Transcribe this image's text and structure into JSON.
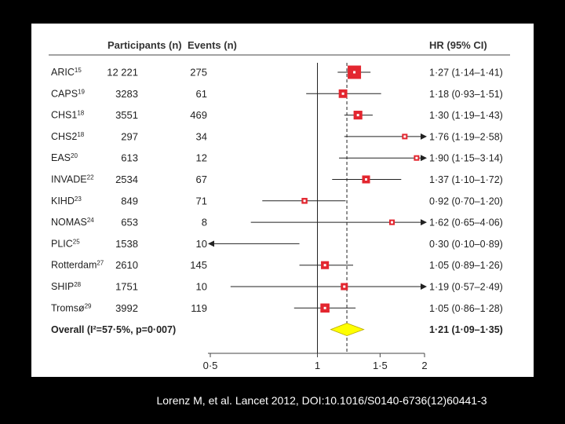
{
  "headers": {
    "participants": "Participants (n)",
    "events": "Events (n)",
    "hr": "HR (95% CI)"
  },
  "citation": "Lorenz M, et al. Lancet 2012, DOI:10.1016/S0140-6736(12)60441-3",
  "colors": {
    "marker": "#e3262f",
    "diamond": "#ffff00",
    "background": "#000000",
    "panel": "#ffffff"
  },
  "chart_data": {
    "type": "forest",
    "xscale": "log",
    "xlim": [
      0.5,
      2
    ],
    "xticks": [
      "0·5",
      "1",
      "1·5",
      "2"
    ],
    "xtick_values": [
      0.5,
      1,
      1.5,
      2
    ],
    "reference_line": 1,
    "overall_dashed_line": 1.21,
    "studies": [
      {
        "name": "ARIC",
        "ref": "15",
        "participants": "12 221",
        "events": "275",
        "hr": 1.27,
        "lo": 1.14,
        "hi": 1.41,
        "label": "1·27 (1·14–1·41)"
      },
      {
        "name": "CAPS",
        "ref": "19",
        "participants": "3283",
        "events": "61",
        "hr": 1.18,
        "lo": 0.93,
        "hi": 1.51,
        "label": "1·18 (0·93–1·51)"
      },
      {
        "name": "CHS1",
        "ref": "18",
        "participants": "3551",
        "events": "469",
        "hr": 1.3,
        "lo": 1.19,
        "hi": 1.43,
        "label": "1·30 (1·19–1·43)"
      },
      {
        "name": "CHS2",
        "ref": "18",
        "participants": "297",
        "events": "34",
        "hr": 1.76,
        "lo": 1.19,
        "hi": 2.58,
        "label": "1·76 (1·19–2·58)"
      },
      {
        "name": "EAS",
        "ref": "20",
        "participants": "613",
        "events": "12",
        "hr": 1.9,
        "lo": 1.15,
        "hi": 3.14,
        "label": "1·90 (1·15–3·14)"
      },
      {
        "name": "INVADE",
        "ref": "22",
        "participants": "2534",
        "events": "67",
        "hr": 1.37,
        "lo": 1.1,
        "hi": 1.72,
        "label": "1·37 (1·10–1·72)"
      },
      {
        "name": "KIHD",
        "ref": "23",
        "participants": "849",
        "events": "71",
        "hr": 0.92,
        "lo": 0.7,
        "hi": 1.2,
        "label": "0·92 (0·70–1·20)"
      },
      {
        "name": "NOMAS",
        "ref": "24",
        "participants": "653",
        "events": "8",
        "hr": 1.62,
        "lo": 0.65,
        "hi": 4.06,
        "label": "1·62 (0·65–4·06)"
      },
      {
        "name": "PLIC",
        "ref": "25",
        "participants": "1538",
        "events": "10",
        "hr": 0.3,
        "lo": 0.1,
        "hi": 0.89,
        "label": "0·30 (0·10–0·89)"
      },
      {
        "name": "Rotterdam",
        "ref": "27",
        "participants": "2610",
        "events": "145",
        "hr": 1.05,
        "lo": 0.89,
        "hi": 1.26,
        "label": "1·05 (0·89–1·26)"
      },
      {
        "name": "SHIP",
        "ref": "28",
        "participants": "1751",
        "events": "10",
        "hr": 1.19,
        "lo": 0.57,
        "hi": 2.49,
        "label": "1·19 (0·57–2·49)"
      },
      {
        "name": "Tromsø",
        "ref": "29",
        "participants": "3992",
        "events": "119",
        "hr": 1.05,
        "lo": 0.86,
        "hi": 1.28,
        "label": "1·05 (0·86–1·28)"
      }
    ],
    "overall": {
      "label": "Overall (I²=57·5%, p=0·007)",
      "hr": 1.21,
      "lo": 1.09,
      "hi": 1.35,
      "hr_label": "1·21 (1·09–1·35)"
    }
  }
}
